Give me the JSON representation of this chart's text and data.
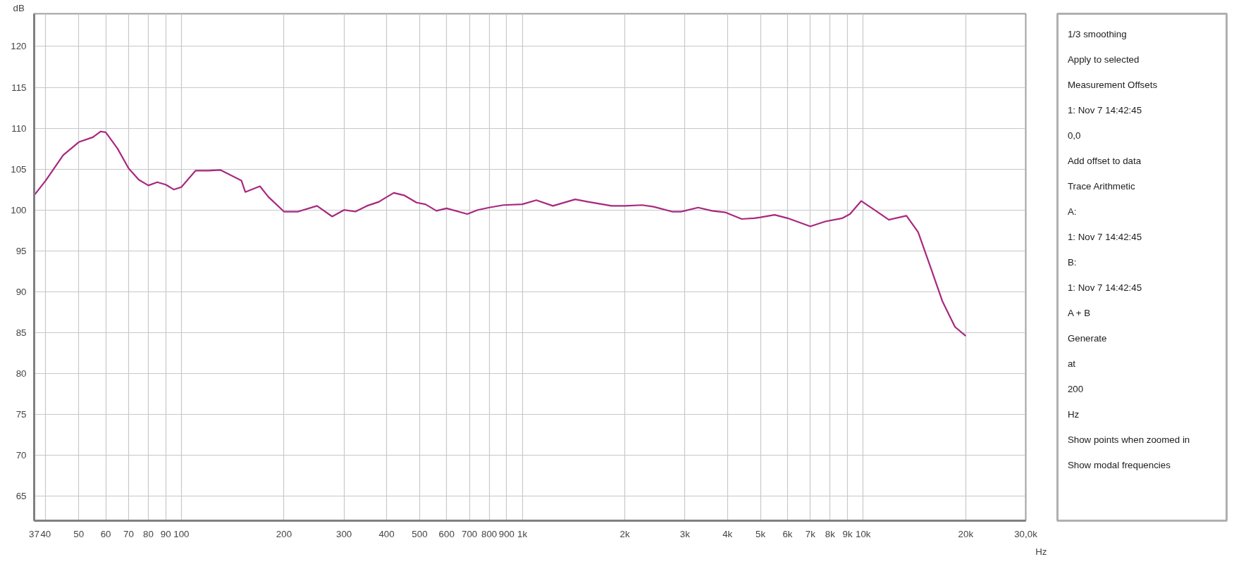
{
  "chart_data": {
    "type": "line",
    "ylabel": "dB",
    "log": "x",
    "grid": true,
    "xlim": [
      37,
      30000
    ],
    "ylim": [
      62,
      124
    ],
    "xticks": [
      37,
      40,
      50,
      60,
      70,
      80,
      90,
      100,
      200,
      300,
      400,
      500,
      600,
      700,
      800,
      900,
      {
        "value": 1000,
        "label": "1k"
      },
      {
        "value": 2000,
        "label": "2k"
      },
      {
        "value": 3000,
        "label": "3k"
      },
      {
        "value": 4000,
        "label": "4k"
      },
      {
        "value": 5000,
        "label": "5k"
      },
      {
        "value": 6000,
        "label": "6k"
      },
      {
        "value": 7000,
        "label": "7k"
      },
      {
        "value": 8000,
        "label": "8k"
      },
      {
        "value": 9000,
        "label": "9k"
      },
      {
        "value": 10000,
        "label": "10k"
      },
      {
        "value": 20000,
        "label": "20k"
      },
      {
        "value": 30000,
        "label": "30,0k"
      }
    ],
    "xlabel": "Hz",
    "yticks": [
      65,
      70,
      75,
      80,
      85,
      90,
      95,
      100,
      105,
      110,
      115,
      120
    ],
    "marker": "none",
    "line_style": "solid",
    "x": [
      37,
      40,
      45,
      50,
      55,
      58,
      60,
      65,
      70,
      75,
      80,
      85,
      90,
      95,
      100,
      110,
      120,
      130,
      150,
      154,
      170,
      180,
      200,
      220,
      250,
      277,
      300,
      324,
      350,
      380,
      390,
      420,
      450,
      490,
      520,
      560,
      600,
      690,
      740,
      800,
      880,
      1000,
      1100,
      1230,
      1430,
      1560,
      1830,
      2000,
      2250,
      2430,
      2750,
      2930,
      3000,
      3280,
      3600,
      3950,
      4400,
      4800,
      5000,
      5500,
      6000,
      7000,
      7750,
      8700,
      9150,
      9870,
      10800,
      11900,
      13400,
      14500,
      15800,
      17100,
      18600,
      20000
    ],
    "series": [
      {
        "color": "#a8287f",
        "values": [
          101.8,
          103.6,
          106.7,
          108.3,
          108.9,
          109.6,
          109.5,
          107.5,
          105.1,
          103.7,
          103.0,
          103.4,
          103.1,
          102.5,
          102.8,
          104.8,
          104.8,
          104.9,
          103.6,
          102.2,
          102.9,
          101.6,
          99.8,
          99.8,
          100.5,
          99.2,
          100.0,
          99.8,
          100.5,
          101.0,
          101.3,
          102.1,
          101.8,
          100.9,
          100.7,
          99.9,
          100.2,
          99.5,
          100.0,
          100.3,
          100.6,
          100.7,
          101.2,
          100.5,
          101.3,
          101.0,
          100.5,
          100.5,
          100.6,
          100.4,
          99.8,
          99.8,
          99.9,
          100.3,
          99.9,
          99.7,
          98.9,
          99.0,
          99.1,
          99.4,
          99.0,
          98.0,
          98.6,
          99.0,
          99.5,
          101.1,
          100.0,
          98.8,
          99.3,
          97.3,
          92.9,
          88.8,
          85.7,
          84.6
        ]
      }
    ],
    "annotations": [
      "1/3 smoothing",
      "Apply to selected",
      "Measurement Offsets",
      "1: Nov 7 14:42:45",
      "0,0",
      "Add offset to data",
      "Trace Arithmetic",
      "A:",
      "1: Nov 7 14:42:45",
      "B:",
      "1: Nov 7 14:42:45",
      "A + B",
      "Generate",
      "at",
      "200",
      "Hz",
      "Show points when zoomed in",
      "Show modal frequencies"
    ]
  }
}
